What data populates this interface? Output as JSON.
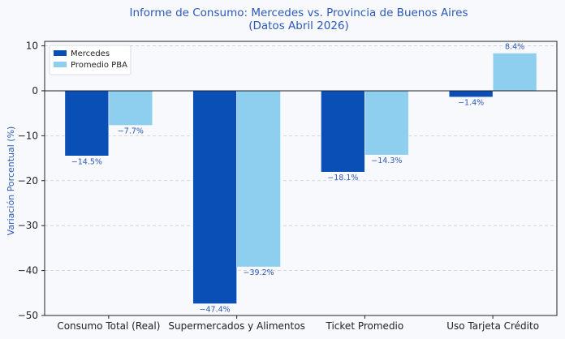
{
  "chart_data": {
    "type": "bar",
    "title": "Informe de Consumo: Mercedes vs. Provincia de Buenos Aires",
    "subtitle": "(Datos Abril 2026)",
    "xlabel": "",
    "ylabel": "Variación Porcentual (%)",
    "ylim": [
      -50,
      11
    ],
    "yticks": [
      10,
      0,
      -10,
      -20,
      -30,
      -40,
      -50
    ],
    "grid": true,
    "legend_position": "top-left",
    "categories": [
      "Consumo Total (Real)",
      "Supermercados y Alimentos",
      "Ticket Promedio",
      "Uso Tarjeta Crédito"
    ],
    "series": [
      {
        "name": "Mercedes",
        "color": "#0a4fb5",
        "values": [
          -14.5,
          -47.4,
          -18.1,
          -1.4
        ],
        "labels": [
          "-14.5%",
          "-47.4%",
          "-18.1%",
          "-1.4%"
        ]
      },
      {
        "name": "Promedio PBA",
        "color": "#8ecff0",
        "values": [
          -7.7,
          -39.2,
          -14.3,
          8.4
        ],
        "labels": [
          "-7.7%",
          "-39.2%",
          "-14.3%",
          "8.4%"
        ]
      }
    ]
  }
}
